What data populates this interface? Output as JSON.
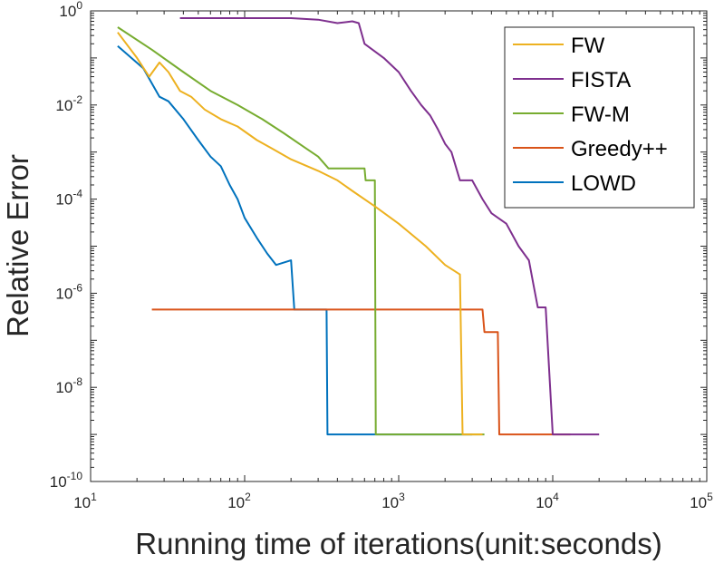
{
  "chart_data": {
    "type": "line",
    "xscale": "log",
    "yscale": "log",
    "xlabel": "Running time of iterations(unit:seconds)",
    "ylabel": "Relative Error",
    "xlim": [
      10,
      100000
    ],
    "ylim": [
      1e-10,
      1
    ],
    "x_ticks": [
      {
        "base": "10",
        "exp": "1",
        "value": 10
      },
      {
        "base": "10",
        "exp": "2",
        "value": 100
      },
      {
        "base": "10",
        "exp": "3",
        "value": 1000
      },
      {
        "base": "10",
        "exp": "4",
        "value": 10000
      },
      {
        "base": "10",
        "exp": "5",
        "value": 100000
      }
    ],
    "y_ticks": [
      {
        "base": "10",
        "exp": "0",
        "value": 1
      },
      {
        "base": "10",
        "exp": "-2",
        "value": 0.01
      },
      {
        "base": "10",
        "exp": "-4",
        "value": 0.0001
      },
      {
        "base": "10",
        "exp": "-6",
        "value": 1e-06
      },
      {
        "base": "10",
        "exp": "-8",
        "value": 1e-08
      },
      {
        "base": "10",
        "exp": "-10",
        "value": 1e-10
      }
    ],
    "legend_position": "top-right",
    "series": [
      {
        "name": "FW",
        "color": "#EDB120",
        "width": 2,
        "points": [
          [
            15,
            0.35
          ],
          [
            20,
            0.1
          ],
          [
            24,
            0.04
          ],
          [
            28,
            0.08
          ],
          [
            32,
            0.05
          ],
          [
            38,
            0.02
          ],
          [
            45,
            0.015
          ],
          [
            55,
            0.008
          ],
          [
            70,
            0.005
          ],
          [
            90,
            0.0035
          ],
          [
            120,
            0.0018
          ],
          [
            150,
            0.0012
          ],
          [
            200,
            0.0007
          ],
          [
            300,
            0.0004
          ],
          [
            400,
            0.00025
          ],
          [
            500,
            0.00015
          ],
          [
            700,
            7e-05
          ],
          [
            1000,
            3e-05
          ],
          [
            1500,
            1e-05
          ],
          [
            2000,
            4e-06
          ],
          [
            2500,
            2.5e-06
          ],
          [
            2600,
            1e-09
          ],
          [
            2800,
            1e-09
          ],
          [
            3500,
            1e-09
          ]
        ]
      },
      {
        "name": "FISTA",
        "color": "#7E2F8E",
        "width": 2,
        "points": [
          [
            38,
            0.7
          ],
          [
            100,
            0.7
          ],
          [
            200,
            0.7
          ],
          [
            300,
            0.65
          ],
          [
            400,
            0.55
          ],
          [
            500,
            0.6
          ],
          [
            550,
            0.55
          ],
          [
            600,
            0.2
          ],
          [
            800,
            0.1
          ],
          [
            1000,
            0.05
          ],
          [
            1200,
            0.02
          ],
          [
            1400,
            0.01
          ],
          [
            1600,
            0.006
          ],
          [
            1800,
            0.003
          ],
          [
            2000,
            0.0015
          ],
          [
            2200,
            0.001
          ],
          [
            2500,
            0.00025
          ],
          [
            3000,
            0.00025
          ],
          [
            3500,
            0.0001
          ],
          [
            4000,
            5e-05
          ],
          [
            5000,
            3e-05
          ],
          [
            6000,
            1e-05
          ],
          [
            7000,
            5e-06
          ],
          [
            7500,
            1.5e-06
          ],
          [
            8000,
            5e-07
          ],
          [
            9000,
            5e-07
          ],
          [
            10000,
            1e-09
          ],
          [
            12000,
            1e-09
          ],
          [
            14000,
            1e-09
          ],
          [
            15000,
            1e-09
          ],
          [
            20000,
            1e-09
          ]
        ]
      },
      {
        "name": "FW-M",
        "color": "#77AC30",
        "width": 2,
        "points": [
          [
            15,
            0.45
          ],
          [
            25,
            0.15
          ],
          [
            40,
            0.05
          ],
          [
            60,
            0.02
          ],
          [
            90,
            0.01
          ],
          [
            130,
            0.005
          ],
          [
            180,
            0.0025
          ],
          [
            250,
            0.0012
          ],
          [
            300,
            0.0008
          ],
          [
            350,
            0.00045
          ],
          [
            600,
            0.00045
          ],
          [
            610,
            0.00025
          ],
          [
            700,
            0.00025
          ],
          [
            710,
            1e-09
          ],
          [
            3600,
            1e-09
          ]
        ]
      },
      {
        "name": "Greedy++",
        "color": "#D95319",
        "width": 2,
        "points": [
          [
            25,
            4.5e-07
          ],
          [
            3500,
            4.5e-07
          ],
          [
            3600,
            1.5e-07
          ],
          [
            4400,
            1.5e-07
          ],
          [
            4500,
            1e-09
          ],
          [
            13000,
            1e-09
          ]
        ]
      },
      {
        "name": "LOWD",
        "color": "#0072BD",
        "width": 2,
        "points": [
          [
            15,
            0.18
          ],
          [
            22,
            0.06
          ],
          [
            28,
            0.015
          ],
          [
            32,
            0.012
          ],
          [
            40,
            0.005
          ],
          [
            50,
            0.0018
          ],
          [
            60,
            0.0008
          ],
          [
            70,
            0.0005
          ],
          [
            80,
            0.0002
          ],
          [
            90,
            0.0001
          ],
          [
            100,
            4e-05
          ],
          [
            120,
            1.5e-05
          ],
          [
            140,
            7e-06
          ],
          [
            160,
            4e-06
          ],
          [
            200,
            5e-06
          ],
          [
            210,
            4.5e-07
          ],
          [
            340,
            4.5e-07
          ],
          [
            345,
            1e-09
          ],
          [
            3000,
            1e-09
          ]
        ]
      }
    ]
  }
}
